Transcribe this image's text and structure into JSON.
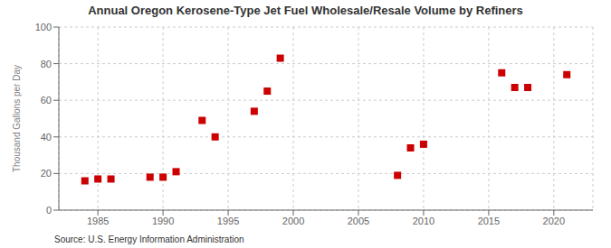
{
  "chart_data": {
    "type": "scatter",
    "title": "Annual Oregon Kerosene-Type Jet Fuel Wholesale/Resale Volume by Refiners",
    "ylabel": "Thousand Gallons per Day",
    "annotation": "Source: U.S. Energy Information Administration",
    "x": [
      1984,
      1985,
      1986,
      1989,
      1990,
      1991,
      1993,
      1994,
      1997,
      1998,
      1999,
      2008,
      2009,
      2010,
      2016,
      2017,
      2018,
      2021
    ],
    "values": [
      16,
      17,
      17,
      18,
      18,
      21,
      49,
      40,
      54,
      65,
      83,
      19,
      34,
      36,
      75,
      67,
      67,
      74
    ],
    "color": "#cc0000",
    "marker": "square",
    "xlim": [
      1982,
      2023
    ],
    "ylim": [
      0,
      100
    ],
    "xticks": [
      1985,
      1990,
      1995,
      2000,
      2005,
      2010,
      2015,
      2020
    ],
    "yticks": [
      0,
      20,
      40,
      60,
      80,
      100
    ],
    "grid": true
  }
}
